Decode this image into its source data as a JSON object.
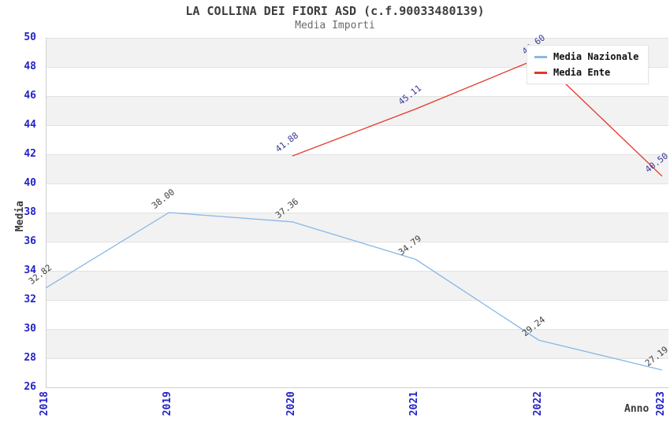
{
  "header": {
    "title": "LA COLLINA DEI FIORI ASD (c.f.90033480139)",
    "subtitle": "Media Importi"
  },
  "chart_data": {
    "type": "line",
    "x": [
      "2018",
      "2019",
      "2020",
      "2021",
      "2022",
      "2023"
    ],
    "xlabel": "Anno",
    "ylabel": "Media",
    "ylim": [
      26,
      50
    ],
    "ytick_step": 2,
    "grid": "horizontal-bands",
    "legend_position": "top-right",
    "series": [
      {
        "name": "Media Nazionale",
        "color": "#88b8e6",
        "label_color": "#3f3f3f",
        "values": [
          32.82,
          38.0,
          37.36,
          34.79,
          29.24,
          27.19
        ]
      },
      {
        "name": "Media Ente",
        "color": "#e53529",
        "label_color": "#3b3b99",
        "values": [
          null,
          null,
          41.88,
          45.11,
          48.6,
          40.5
        ]
      }
    ]
  },
  "colors": {
    "tick": "#2323c8",
    "axis_text": "#3a3a3a",
    "band_gray": "#f2f2f2",
    "band_line": "#e2e2e2",
    "axis_line": "#cfcfcf",
    "legend_bg": "#ffffff",
    "legend_border": "#e6e6e6"
  }
}
